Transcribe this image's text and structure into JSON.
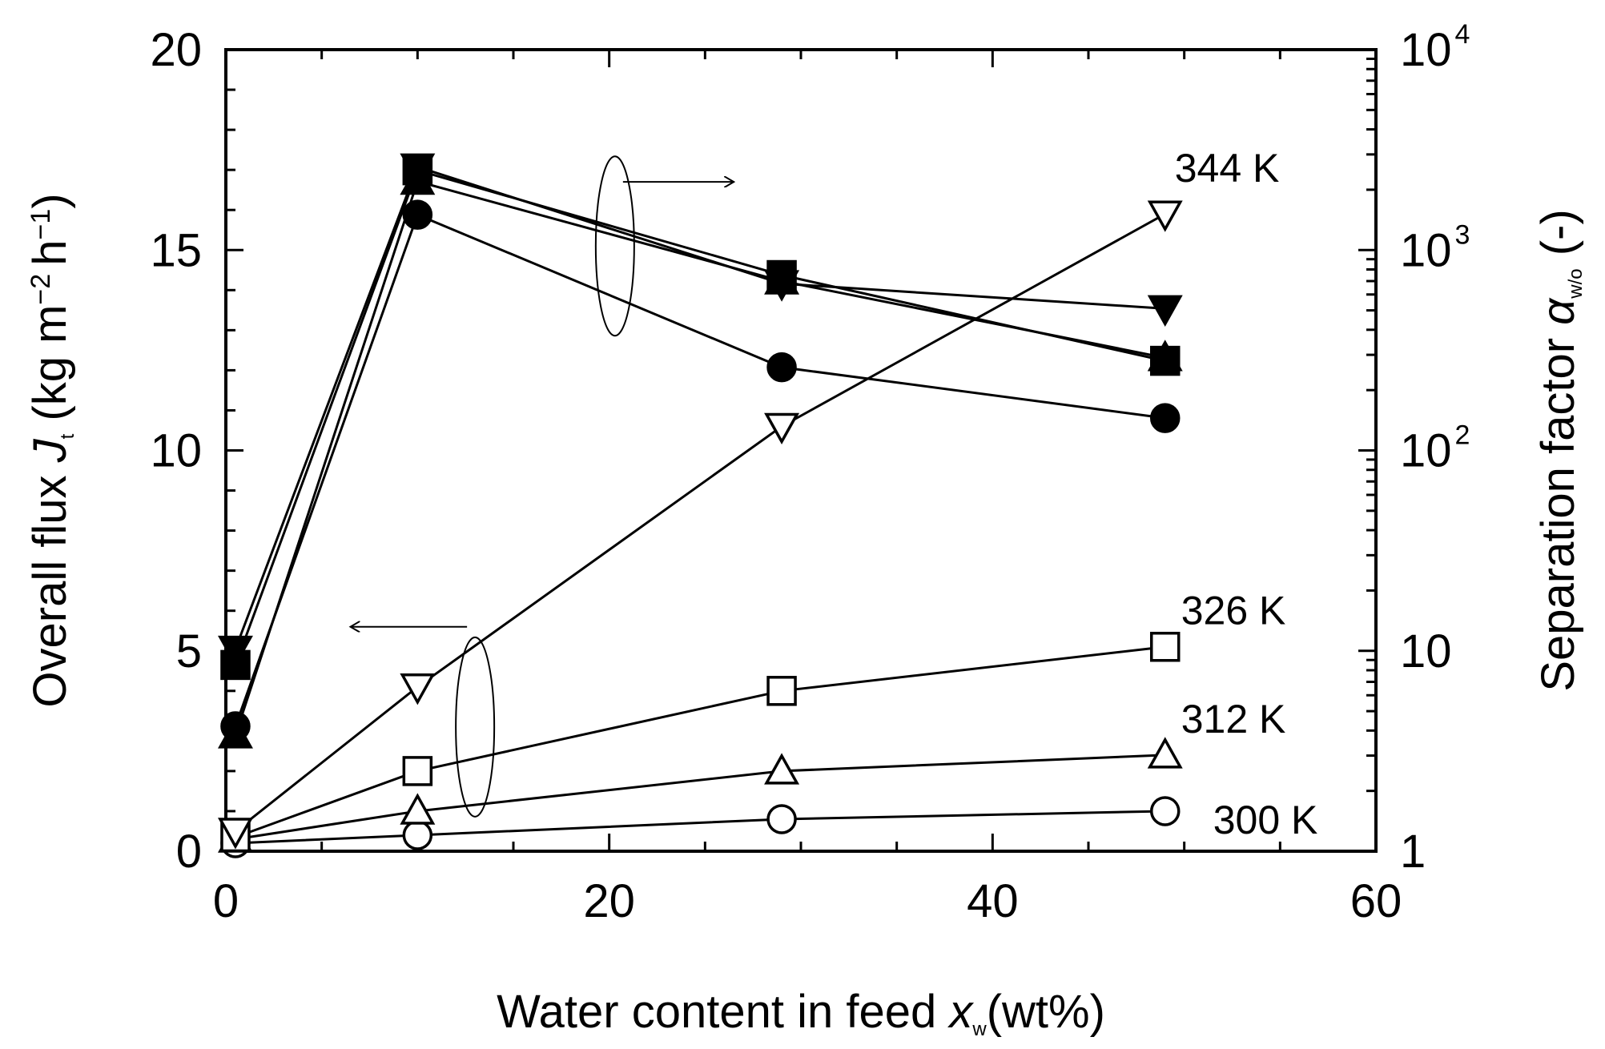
{
  "chart_data": {
    "type": "line",
    "title": "",
    "x": [
      0.5,
      10,
      29,
      49
    ],
    "xlabel": "Water content in feed x_w (wt%)",
    "xlabel_parts": {
      "main": "Water content in feed ",
      "var": "x",
      "sub": "w",
      "unit": "(wt%)"
    },
    "xlim": [
      0,
      60
    ],
    "xticks": [
      0,
      20,
      40,
      60
    ],
    "ylabel_left": "Overall flux J_t (kg m^-2 h^-1)",
    "ylabel_left_parts": {
      "main": "Overall flux ",
      "var": "J",
      "sub": "t",
      "unit_a": " (kg m",
      "exp1": "−2",
      "unit_b": "h",
      "exp2": "−1",
      "unit_c": ")"
    },
    "ylim_left": [
      0,
      20
    ],
    "yticks_left": [
      0,
      5,
      10,
      15,
      20
    ],
    "ylabel_right": "Separation factor α_w/o (-)",
    "ylabel_right_parts": {
      "main": "Separation factor ",
      "var": "α",
      "sub": "w/o",
      "unit": " (-)"
    },
    "ylim_right": [
      1,
      10000
    ],
    "yscale_right": "log",
    "yticks_right": [
      {
        "base": "1",
        "exp": ""
      },
      {
        "base": "10",
        "exp": ""
      },
      {
        "base": "10",
        "exp": "2"
      },
      {
        "base": "10",
        "exp": "3"
      },
      {
        "base": "10",
        "exp": "4"
      }
    ],
    "series": [
      {
        "name": "300 K",
        "axis": "left",
        "marker": "circle",
        "filled": false,
        "values": [
          0.2,
          0.4,
          0.8,
          1.0
        ]
      },
      {
        "name": "312 K",
        "axis": "left",
        "marker": "triangle-up",
        "filled": false,
        "values": [
          0.3,
          1.0,
          2.0,
          2.4
        ]
      },
      {
        "name": "326 K",
        "axis": "left",
        "marker": "square",
        "filled": false,
        "values": [
          0.35,
          2.0,
          4.0,
          5.1
        ]
      },
      {
        "name": "344 K",
        "axis": "left",
        "marker": "triangle-down",
        "filled": false,
        "values": [
          0.5,
          4.1,
          10.6,
          15.9
        ]
      },
      {
        "name": "300 K",
        "axis": "right",
        "marker": "circle",
        "filled": true,
        "values": [
          4.2,
          1500,
          260,
          145
        ]
      },
      {
        "name": "312 K",
        "axis": "right",
        "marker": "triangle-up",
        "filled": true,
        "values": [
          3.8,
          2200,
          700,
          290
        ]
      },
      {
        "name": "326 K",
        "axis": "right",
        "marker": "square",
        "filled": true,
        "values": [
          8.5,
          2500,
          750,
          280
        ]
      },
      {
        "name": "344 K",
        "axis": "right",
        "marker": "triangle-down",
        "filled": true,
        "values": [
          10.2,
          2600,
          680,
          510
        ]
      }
    ],
    "temperature_labels": [
      {
        "text": "344 K",
        "series": 3
      },
      {
        "text": "326 K",
        "series": 2
      },
      {
        "text": "312 K",
        "series": 1
      },
      {
        "text": "300 K",
        "series": 0
      }
    ],
    "annotations": [
      {
        "type": "ellipse-arrow",
        "points_to": "right axis (separation factor, filled symbols)"
      },
      {
        "type": "ellipse-arrow",
        "points_to": "left axis (overall flux, open symbols)"
      }
    ]
  }
}
